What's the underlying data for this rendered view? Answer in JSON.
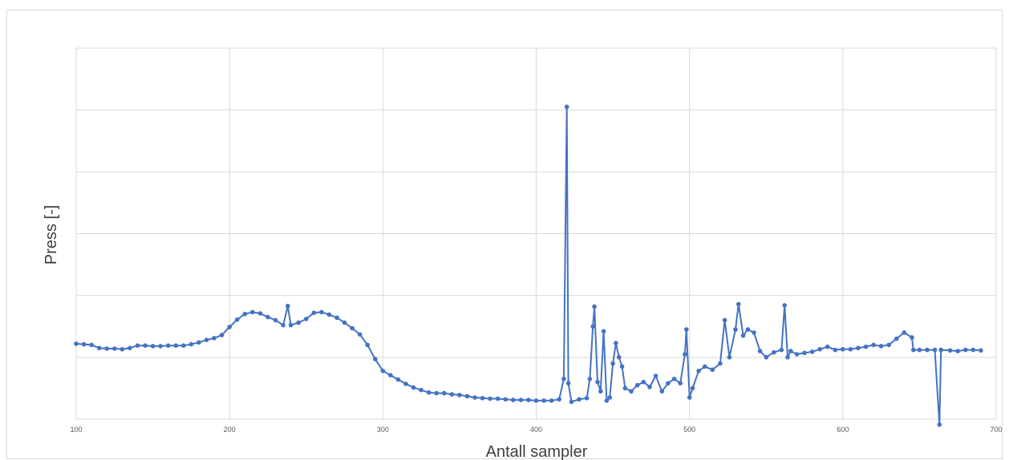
{
  "chart_data": {
    "type": "line",
    "title": "",
    "xlabel": "Antall sampler",
    "ylabel": "Press [-]",
    "xlim": [
      100,
      700
    ],
    "ylim": [
      0,
      6
    ],
    "x_ticks": [
      100,
      200,
      300,
      400,
      500,
      600,
      700
    ],
    "y_gridlines": 6,
    "y_tick_labels_shown": false,
    "grid": true,
    "legend": "none",
    "series": [
      {
        "color": "#4472c4",
        "marker": "circle",
        "points": [
          [
            100,
            1.22
          ],
          [
            105,
            1.21
          ],
          [
            110,
            1.2
          ],
          [
            115,
            1.15
          ],
          [
            120,
            1.14
          ],
          [
            125,
            1.14
          ],
          [
            130,
            1.13
          ],
          [
            135,
            1.15
          ],
          [
            140,
            1.19
          ],
          [
            145,
            1.19
          ],
          [
            150,
            1.18
          ],
          [
            155,
            1.18
          ],
          [
            160,
            1.19
          ],
          [
            165,
            1.19
          ],
          [
            170,
            1.19
          ],
          [
            175,
            1.21
          ],
          [
            180,
            1.24
          ],
          [
            185,
            1.28
          ],
          [
            190,
            1.31
          ],
          [
            195,
            1.36
          ],
          [
            200,
            1.49
          ],
          [
            205,
            1.61
          ],
          [
            210,
            1.7
          ],
          [
            215,
            1.73
          ],
          [
            220,
            1.71
          ],
          [
            225,
            1.65
          ],
          [
            230,
            1.6
          ],
          [
            235,
            1.52
          ],
          [
            238,
            1.83
          ],
          [
            240,
            1.52
          ],
          [
            245,
            1.56
          ],
          [
            250,
            1.62
          ],
          [
            255,
            1.72
          ],
          [
            260,
            1.73
          ],
          [
            265,
            1.69
          ],
          [
            270,
            1.64
          ],
          [
            275,
            1.56
          ],
          [
            280,
            1.47
          ],
          [
            285,
            1.37
          ],
          [
            290,
            1.2
          ],
          [
            295,
            0.97
          ],
          [
            300,
            0.78
          ],
          [
            305,
            0.71
          ],
          [
            310,
            0.64
          ],
          [
            315,
            0.57
          ],
          [
            320,
            0.51
          ],
          [
            325,
            0.47
          ],
          [
            330,
            0.43
          ],
          [
            335,
            0.42
          ],
          [
            340,
            0.42
          ],
          [
            345,
            0.4
          ],
          [
            350,
            0.39
          ],
          [
            355,
            0.37
          ],
          [
            360,
            0.35
          ],
          [
            365,
            0.34
          ],
          [
            370,
            0.33
          ],
          [
            375,
            0.33
          ],
          [
            380,
            0.32
          ],
          [
            385,
            0.31
          ],
          [
            390,
            0.31
          ],
          [
            395,
            0.31
          ],
          [
            400,
            0.3
          ],
          [
            405,
            0.3
          ],
          [
            410,
            0.3
          ],
          [
            415,
            0.32
          ],
          [
            418,
            0.65
          ],
          [
            420,
            5.05
          ],
          [
            421,
            0.58
          ],
          [
            423,
            0.28
          ],
          [
            428,
            0.32
          ],
          [
            433,
            0.34
          ],
          [
            435,
            0.65
          ],
          [
            437,
            1.5
          ],
          [
            438,
            1.82
          ],
          [
            440,
            0.6
          ],
          [
            442,
            0.45
          ],
          [
            444,
            1.42
          ],
          [
            446,
            0.3
          ],
          [
            448,
            0.35
          ],
          [
            450,
            0.9
          ],
          [
            452,
            1.23
          ],
          [
            454,
            1.0
          ],
          [
            456,
            0.85
          ],
          [
            458,
            0.5
          ],
          [
            462,
            0.45
          ],
          [
            466,
            0.55
          ],
          [
            470,
            0.6
          ],
          [
            474,
            0.52
          ],
          [
            478,
            0.7
          ],
          [
            482,
            0.45
          ],
          [
            486,
            0.58
          ],
          [
            490,
            0.65
          ],
          [
            494,
            0.58
          ],
          [
            497,
            1.05
          ],
          [
            498,
            1.45
          ],
          [
            500,
            0.35
          ],
          [
            502,
            0.5
          ],
          [
            506,
            0.78
          ],
          [
            510,
            0.85
          ],
          [
            515,
            0.8
          ],
          [
            520,
            0.9
          ],
          [
            523,
            1.6
          ],
          [
            526,
            1.0
          ],
          [
            530,
            1.45
          ],
          [
            532,
            1.86
          ],
          [
            535,
            1.35
          ],
          [
            538,
            1.45
          ],
          [
            542,
            1.4
          ],
          [
            546,
            1.1
          ],
          [
            550,
            1.0
          ],
          [
            555,
            1.08
          ],
          [
            560,
            1.12
          ],
          [
            562,
            1.84
          ],
          [
            564,
            1.0
          ],
          [
            566,
            1.1
          ],
          [
            570,
            1.05
          ],
          [
            575,
            1.07
          ],
          [
            580,
            1.09
          ],
          [
            585,
            1.13
          ],
          [
            590,
            1.17
          ],
          [
            595,
            1.12
          ],
          [
            600,
            1.13
          ],
          [
            605,
            1.13
          ],
          [
            610,
            1.15
          ],
          [
            615,
            1.17
          ],
          [
            620,
            1.2
          ],
          [
            625,
            1.18
          ],
          [
            630,
            1.2
          ],
          [
            635,
            1.3
          ],
          [
            640,
            1.4
          ],
          [
            645,
            1.32
          ],
          [
            646,
            1.12
          ],
          [
            650,
            1.12
          ],
          [
            655,
            1.12
          ],
          [
            660,
            1.12
          ],
          [
            663,
            -0.09
          ],
          [
            664,
            1.12
          ],
          [
            670,
            1.11
          ],
          [
            675,
            1.1
          ],
          [
            680,
            1.12
          ],
          [
            685,
            1.12
          ],
          [
            690,
            1.11
          ]
        ]
      }
    ]
  }
}
